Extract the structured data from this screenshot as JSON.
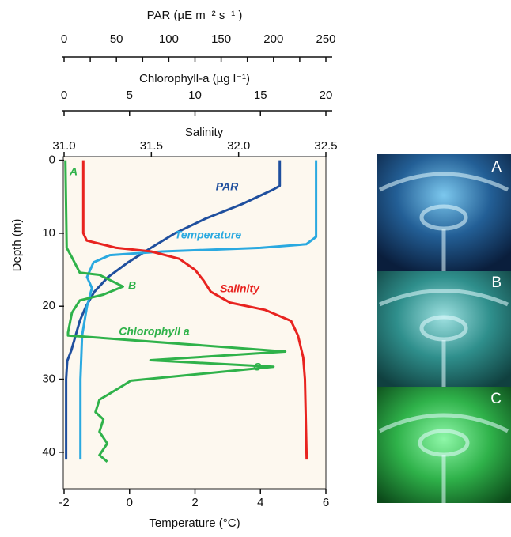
{
  "chart_data": {
    "type": "line",
    "xlabel": "Temperature (°C)",
    "xlim": [
      -2,
      6
    ],
    "xticks": [
      -2,
      0,
      2,
      4,
      6
    ],
    "x2label": "Salinity",
    "x2lim": [
      31.0,
      32.5
    ],
    "x2ticks": [
      {
        "value": 31.0,
        "label": "31.0"
      },
      31.5,
      {
        "value": 32.0,
        "label": "32.0"
      },
      32.5
    ],
    "x3label": "Chlorophyll-a (µg l⁻¹)",
    "x3lim": [
      0,
      20
    ],
    "x3ticks": [
      0,
      5,
      10,
      15,
      20
    ],
    "x4label": "PAR (µE m⁻² s⁻¹ )",
    "x4lim": [
      0,
      250
    ],
    "x4ticks": [
      0,
      50,
      100,
      150,
      200,
      250
    ],
    "x4minorticks": [
      25,
      75,
      125,
      175,
      225
    ],
    "ylabel": "Depth (m)",
    "ylim": [
      -0.5,
      45
    ],
    "yticks": [
      0,
      10,
      20,
      30,
      40
    ],
    "y_inverted": true,
    "series": [
      {
        "name": "PAR",
        "color": "#1f4f9e",
        "axis": "x4",
        "depth": [
          0,
          3.5,
          4,
          6,
          8,
          10,
          12,
          14,
          16,
          18,
          20,
          22,
          24,
          26,
          27.5,
          30,
          41
        ],
        "values": [
          206,
          206,
          200,
          170,
          135,
          106,
          83,
          61,
          42,
          29,
          21,
          15,
          11,
          7,
          3,
          2,
          2
        ]
      },
      {
        "name": "Temperature",
        "color": "#2aa9e0",
        "axis": "x",
        "depth": [
          0,
          10.5,
          11.5,
          12,
          12.5,
          13,
          14,
          16,
          17.5,
          20,
          24,
          30,
          41
        ],
        "values": [
          5.7,
          5.7,
          5.4,
          4.0,
          1.0,
          -0.6,
          -1.1,
          -1.3,
          -1.15,
          -1.3,
          -1.45,
          -1.5,
          -1.5
        ]
      },
      {
        "name": "Salinity",
        "color": "#e8231f",
        "axis": "x2",
        "depth": [
          0,
          10,
          11,
          12,
          12.5,
          13.5,
          15,
          16.5,
          18,
          19.5,
          20.5,
          22,
          24,
          27,
          30,
          41
        ],
        "values": [
          31.11,
          31.11,
          31.13,
          31.3,
          31.5,
          31.66,
          31.75,
          31.8,
          31.84,
          31.95,
          32.15,
          32.3,
          32.34,
          32.37,
          32.38,
          32.39
        ]
      },
      {
        "name": "Chlorophyll a",
        "color": "#2fb24a",
        "axis": "x3",
        "depth": [
          0,
          12,
          13.3,
          15.4,
          15.7,
          17.3,
          18.4,
          19.2,
          20.9,
          23.6,
          24,
          26.2,
          27.4,
          28.3,
          30.2,
          31.2,
          32.8,
          34.5,
          35.5,
          37.2,
          38.8,
          40.4,
          41.3
        ],
        "values": [
          0.1,
          0.2,
          0.6,
          1.2,
          2.7,
          4.5,
          3.0,
          1.2,
          0.6,
          0.3,
          0.3,
          16.9,
          6.6,
          16.0,
          5.1,
          4.2,
          2.7,
          2.4,
          3.0,
          2.7,
          3.3,
          2.7,
          3.3
        ]
      }
    ],
    "annotations": [
      "A",
      "B",
      "C",
      "PAR",
      "Temperature",
      "Salinity",
      "Chlorophyll a"
    ]
  },
  "photos": {
    "labels": [
      "A",
      "B",
      "C"
    ]
  }
}
